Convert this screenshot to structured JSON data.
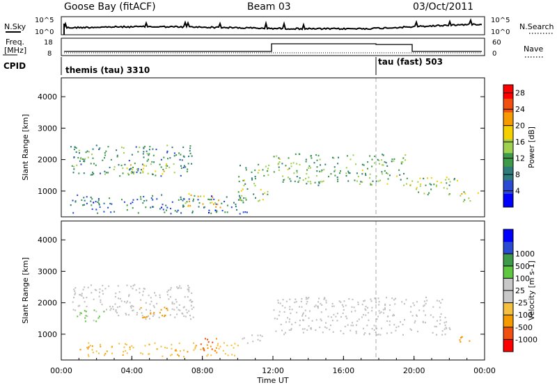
{
  "header": {
    "station": "Goose Bay (fitACF)",
    "beam": "Beam 03",
    "date": "03/Oct/2011"
  },
  "labels": {
    "nsky": "N.Sky",
    "nsearch": "N.Search",
    "freq": "Freq.",
    "mhz": "[MHz]",
    "nave": "Nave",
    "cpid": "CPID",
    "cpid_left": "themis (tau) 3310",
    "cpid_right": "tau (fast) 503",
    "noise_tick_high": "10^5",
    "noise_tick_low": "10^0",
    "freq_tick_high": "18",
    "freq_tick_low": "8",
    "nave_tick_high": "60",
    "nave_tick_low": "0"
  },
  "colors": {
    "power_scale": [
      "#0000ff",
      "#2a4ad2",
      "#2f7a7a",
      "#3c9a48",
      "#a0d050",
      "#f5d000",
      "#f59a00",
      "#f05010",
      "#ff0000"
    ],
    "velocity_scale": [
      "#ff0000",
      "#f05010",
      "#f59a00",
      "#f5c040",
      "#c8c8c8",
      "#c8c8c8",
      "#60c840",
      "#3c9a48",
      "#2a4ad2",
      "#0000ff"
    ],
    "ground_scatter": "#c0c0c0"
  },
  "chart_data": [
    {
      "type": "heatmap",
      "title": "",
      "xlabel": "Time UT",
      "ylabel": "Slant Range [km]",
      "xlim": [
        "00:00",
        "24:00"
      ],
      "ylim": [
        180,
        4600
      ],
      "x_ticks": [
        "00:00",
        "04:00",
        "08:00",
        "12:00",
        "16:00",
        "20:00",
        "00:00"
      ],
      "y_ticks": [
        1000,
        2000,
        3000,
        4000
      ],
      "colorbar": {
        "label": "Power [dB]",
        "ticks": [
          4,
          8,
          12,
          16,
          20,
          24,
          28
        ],
        "range": [
          0,
          30
        ]
      },
      "marker_hour": 18,
      "regions": [
        {
          "t0": 0.5,
          "t1": 7.5,
          "r0": 1500,
          "r1": 2500,
          "value": 10
        },
        {
          "t0": 3.5,
          "t1": 6.0,
          "r0": 1550,
          "r1": 1900,
          "value": 16
        },
        {
          "t0": 10.0,
          "t1": 11.8,
          "r0": 700,
          "r1": 1900,
          "value": 14
        },
        {
          "t0": 12.0,
          "t1": 19.5,
          "r0": 1200,
          "r1": 2200,
          "value": 12
        },
        {
          "t0": 19.5,
          "t1": 22.5,
          "r0": 900,
          "r1": 1500,
          "value": 14
        },
        {
          "t0": 22.5,
          "t1": 23.6,
          "r0": 650,
          "r1": 1000,
          "value": 16
        },
        {
          "t0": 0.5,
          "t1": 10.5,
          "r0": 300,
          "r1": 900,
          "value": 8
        },
        {
          "t0": 7.0,
          "t1": 9.0,
          "r0": 500,
          "r1": 950,
          "value": 18
        }
      ]
    },
    {
      "type": "heatmap",
      "title": "",
      "xlabel": "Time UT",
      "ylabel": "Slant Range [km]",
      "xlim": [
        "00:00",
        "24:00"
      ],
      "ylim": [
        180,
        4600
      ],
      "x_ticks": [
        "00:00",
        "04:00",
        "08:00",
        "12:00",
        "16:00",
        "20:00",
        "00:00"
      ],
      "y_ticks": [
        1000,
        2000,
        3000,
        4000
      ],
      "colorbar": {
        "label": "Velocity [m s-1]",
        "ticks": [
          "-1000",
          "-500",
          "-100",
          "-25",
          "25",
          "100",
          "500",
          "1000"
        ]
      },
      "marker_hour": 18,
      "regions": [
        {
          "t0": 0.5,
          "t1": 7.5,
          "r0": 1500,
          "r1": 2600,
          "value": "ground"
        },
        {
          "t0": 12.0,
          "t1": 22.0,
          "r0": 1000,
          "r1": 2200,
          "value": "ground"
        },
        {
          "t0": 4.0,
          "t1": 6.0,
          "r0": 1550,
          "r1": 1900,
          "value": -300
        },
        {
          "t0": 0.8,
          "t1": 2.5,
          "r0": 1400,
          "r1": 1800,
          "value": 150
        },
        {
          "t0": 7.5,
          "t1": 8.8,
          "r0": 450,
          "r1": 900,
          "value": -600
        },
        {
          "t0": 1.0,
          "t1": 10.0,
          "r0": 300,
          "r1": 750,
          "value": -80
        },
        {
          "t0": 10.0,
          "t1": 11.5,
          "r0": 700,
          "r1": 1000,
          "value": "ground"
        },
        {
          "t0": 22.5,
          "t1": 23.5,
          "r0": 700,
          "r1": 950,
          "value": -200
        }
      ]
    }
  ]
}
